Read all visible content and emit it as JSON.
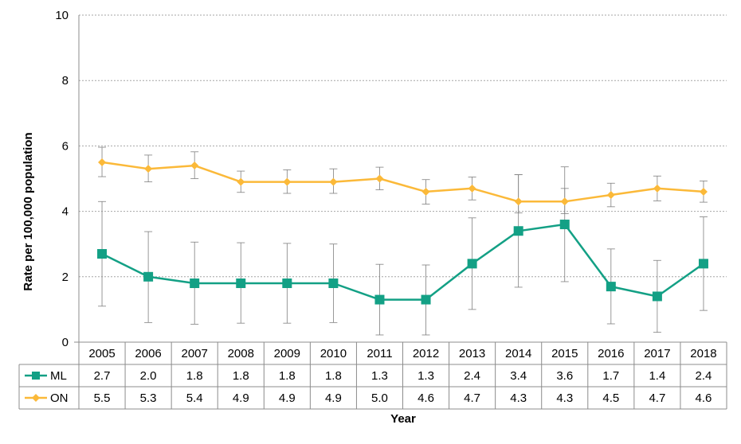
{
  "chart_data": {
    "type": "line",
    "xlabel": "Year",
    "ylabel": "Rate per 100,000 population",
    "ylim": [
      0,
      10
    ],
    "yticks": [
      "0",
      "2",
      "4",
      "6",
      "8",
      "10"
    ],
    "grid": "horizontal dotted",
    "legend_placement": "data table below plot",
    "categories": [
      "2005",
      "2006",
      "2007",
      "2008",
      "2009",
      "2010",
      "2011",
      "2012",
      "2013",
      "2014",
      "2015",
      "2016",
      "2017",
      "2018"
    ],
    "series": [
      {
        "name": "ML",
        "color": "#13a085",
        "marker": "square",
        "values": [
          2.7,
          2.0,
          1.8,
          1.8,
          1.8,
          1.8,
          1.3,
          1.3,
          2.4,
          3.4,
          3.6,
          1.7,
          1.4,
          2.4
        ],
        "labels": [
          "2.7",
          "2.0",
          "1.8",
          "1.8",
          "1.8",
          "1.8",
          "1.3",
          "1.3",
          "2.4",
          "3.4",
          "3.6",
          "1.7",
          "1.4",
          "2.4"
        ],
        "error_low": [
          1.1,
          0.6,
          0.55,
          0.58,
          0.58,
          0.6,
          0.22,
          0.22,
          1.0,
          1.68,
          1.85,
          0.56,
          0.3,
          0.97
        ],
        "error_high": [
          4.3,
          3.38,
          3.06,
          3.04,
          3.02,
          3.0,
          2.38,
          2.36,
          3.8,
          5.12,
          5.36,
          2.85,
          2.5,
          3.83
        ]
      },
      {
        "name": "ON",
        "color": "#fbb939",
        "marker": "diamond",
        "values": [
          5.5,
          5.3,
          5.4,
          4.9,
          4.9,
          4.9,
          5.0,
          4.6,
          4.7,
          4.3,
          4.3,
          4.5,
          4.7,
          4.6
        ],
        "labels": [
          "5.5",
          "5.3",
          "5.4",
          "4.9",
          "4.9",
          "4.9",
          "5.0",
          "4.6",
          "4.7",
          "4.3",
          "4.3",
          "4.5",
          "4.7",
          "4.6"
        ],
        "error_low": [
          5.06,
          4.9,
          5.0,
          4.58,
          4.55,
          4.55,
          4.66,
          4.22,
          4.35,
          3.95,
          3.93,
          4.14,
          4.32,
          4.28
        ],
        "error_high": [
          5.96,
          5.72,
          5.82,
          5.23,
          5.27,
          5.3,
          5.35,
          4.97,
          5.05,
          5.12,
          4.7,
          4.86,
          5.08,
          4.93
        ]
      }
    ]
  }
}
